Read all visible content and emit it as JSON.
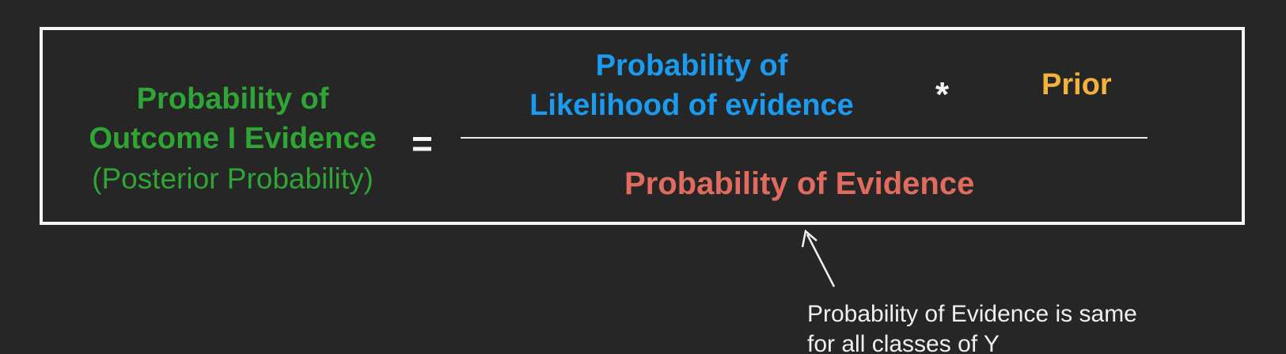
{
  "formula": {
    "posterior": {
      "line1": "Probability of",
      "line2": "Outcome I Evidence",
      "line3": "(Posterior Probability)",
      "color": "#2ea534"
    },
    "equals": "=",
    "likelihood": {
      "line1": "Probability of",
      "line2": "Likelihood of evidence",
      "color": "#1a9bf0"
    },
    "times": "*",
    "prior": {
      "label": "Prior",
      "color": "#f2b33c"
    },
    "evidence": {
      "label": "Probability of Evidence",
      "color": "#e06b5e"
    }
  },
  "annotation": {
    "line1": "Probability of Evidence is same",
    "line2": "for all classes of Y"
  },
  "colors": {
    "background": "#262626",
    "box_border": "#f4f4f4",
    "text_white": "#f0f0f0"
  }
}
